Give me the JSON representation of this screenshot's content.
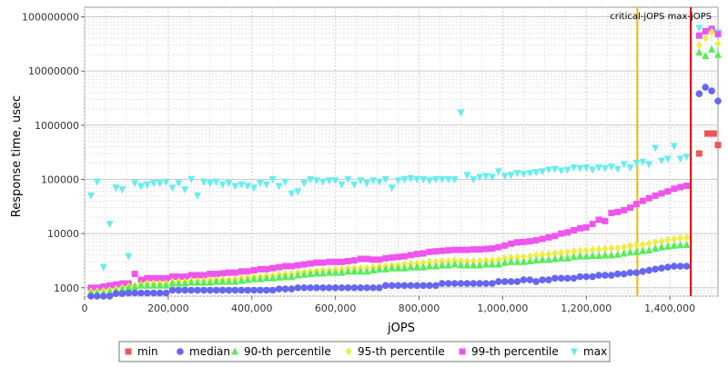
{
  "chart_data": {
    "type": "scatter",
    "xlabel": "jOPS",
    "ylabel": "Response time, usec",
    "y_scale": "log",
    "xlim": [
      0,
      1515000
    ],
    "ylim": [
      700,
      150000000
    ],
    "x_ticks": [
      0,
      200000,
      400000,
      600000,
      800000,
      1000000,
      1200000,
      1400000
    ],
    "x_tick_labels": [
      "0",
      "200,000",
      "400,000",
      "600,000",
      "800,000",
      "1,000,000",
      "1,200,000",
      "1,400,000"
    ],
    "y_ticks": [
      1000,
      10000,
      100000,
      1000000,
      10000000,
      100000000
    ],
    "y_tick_labels": [
      "1000",
      "10000",
      "100000",
      "1000000",
      "10000000",
      "100000000"
    ],
    "grid": true,
    "legend_position": "bottom",
    "reference_lines": [
      {
        "label": "critical-jOPS",
        "x": 1322000,
        "color": "#f5b800"
      },
      {
        "label": "max-jOPS",
        "x": 1450000,
        "color": "#e00000"
      }
    ],
    "reference_label_text": "critical-jOPS max-jOPS",
    "series": [
      {
        "name": "min",
        "color": "#ee5555",
        "marker": "square",
        "x": [
          1470000,
          1490000,
          1505000,
          1515000
        ],
        "y": [
          300000,
          700000,
          700000,
          430000
        ]
      },
      {
        "name": "median",
        "color": "#6666ee",
        "marker": "circle",
        "x": [
          15000,
          30000,
          45000,
          60000,
          75000,
          90000,
          105000,
          120000,
          135000,
          150000,
          165000,
          180000,
          195000,
          210000,
          225000,
          240000,
          255000,
          270000,
          285000,
          300000,
          315000,
          330000,
          345000,
          360000,
          375000,
          390000,
          405000,
          420000,
          435000,
          450000,
          465000,
          480000,
          495000,
          510000,
          525000,
          540000,
          555000,
          570000,
          585000,
          600000,
          615000,
          630000,
          645000,
          660000,
          675000,
          690000,
          705000,
          720000,
          735000,
          750000,
          765000,
          780000,
          795000,
          810000,
          825000,
          840000,
          855000,
          870000,
          885000,
          900000,
          915000,
          930000,
          945000,
          960000,
          975000,
          990000,
          1005000,
          1020000,
          1035000,
          1050000,
          1065000,
          1080000,
          1095000,
          1110000,
          1125000,
          1140000,
          1155000,
          1170000,
          1185000,
          1200000,
          1215000,
          1230000,
          1245000,
          1260000,
          1275000,
          1290000,
          1305000,
          1320000,
          1335000,
          1350000,
          1365000,
          1380000,
          1395000,
          1410000,
          1425000,
          1440000,
          1470000,
          1485000,
          1500000,
          1515000
        ],
        "y": [
          700,
          700,
          700,
          700,
          780,
          780,
          800,
          800,
          800,
          800,
          800,
          800,
          800,
          900,
          900,
          900,
          900,
          900,
          900,
          900,
          900,
          900,
          900,
          900,
          900,
          900,
          900,
          900,
          900,
          900,
          950,
          950,
          950,
          1000,
          1000,
          1000,
          1000,
          1000,
          1000,
          1000,
          1000,
          1000,
          1000,
          1000,
          1000,
          1000,
          1000,
          1100,
          1100,
          1100,
          1100,
          1100,
          1100,
          1100,
          1100,
          1100,
          1200,
          1200,
          1200,
          1200,
          1200,
          1200,
          1200,
          1200,
          1200,
          1300,
          1300,
          1300,
          1300,
          1400,
          1400,
          1300,
          1400,
          1400,
          1500,
          1500,
          1500,
          1500,
          1600,
          1600,
          1600,
          1700,
          1700,
          1700,
          1800,
          1800,
          1900,
          1900,
          2000,
          2100,
          2200,
          2300,
          2400,
          2500,
          2500,
          2500,
          3800000,
          5000000,
          4300000,
          2800000
        ]
      },
      {
        "name": "90-th percentile",
        "color": "#55ee55",
        "marker": "triangle-up",
        "x": [
          15000,
          30000,
          45000,
          60000,
          75000,
          90000,
          105000,
          120000,
          135000,
          150000,
          165000,
          180000,
          195000,
          210000,
          225000,
          240000,
          255000,
          270000,
          285000,
          300000,
          315000,
          330000,
          345000,
          360000,
          375000,
          390000,
          405000,
          420000,
          435000,
          450000,
          465000,
          480000,
          495000,
          510000,
          525000,
          540000,
          555000,
          570000,
          585000,
          600000,
          615000,
          630000,
          645000,
          660000,
          675000,
          690000,
          705000,
          720000,
          735000,
          750000,
          765000,
          780000,
          795000,
          810000,
          825000,
          840000,
          855000,
          870000,
          885000,
          900000,
          915000,
          930000,
          945000,
          960000,
          975000,
          990000,
          1005000,
          1020000,
          1035000,
          1050000,
          1065000,
          1080000,
          1095000,
          1110000,
          1125000,
          1140000,
          1155000,
          1170000,
          1185000,
          1200000,
          1215000,
          1230000,
          1245000,
          1260000,
          1275000,
          1290000,
          1305000,
          1320000,
          1335000,
          1350000,
          1365000,
          1380000,
          1395000,
          1410000,
          1425000,
          1440000,
          1470000,
          1485000,
          1500000,
          1515000
        ],
        "y": [
          800,
          800,
          800,
          850,
          900,
          950,
          1000,
          1050,
          1100,
          1100,
          1100,
          1100,
          1100,
          1200,
          1200,
          1200,
          1250,
          1250,
          1250,
          1250,
          1300,
          1300,
          1300,
          1300,
          1350,
          1400,
          1450,
          1450,
          1500,
          1500,
          1550,
          1600,
          1600,
          1700,
          1750,
          1800,
          1850,
          1850,
          1900,
          1900,
          1900,
          2000,
          2000,
          2000,
          2000,
          2100,
          2200,
          2200,
          2300,
          2300,
          2300,
          2400,
          2400,
          2400,
          2500,
          2500,
          2600,
          2600,
          2700,
          2600,
          2600,
          2600,
          2600,
          2700,
          2700,
          2700,
          2900,
          3000,
          3000,
          3000,
          3100,
          3200,
          3300,
          3300,
          3400,
          3500,
          3500,
          3700,
          3800,
          3800,
          3900,
          3900,
          4000,
          4000,
          4100,
          4300,
          4500,
          4600,
          4800,
          4900,
          5300,
          5600,
          5800,
          6000,
          6100,
          6200,
          22000000,
          19000000,
          25000000,
          20000000
        ]
      },
      {
        "name": "95-th percentile",
        "color": "#eeee44",
        "marker": "diamond",
        "x": [
          15000,
          30000,
          45000,
          60000,
          75000,
          90000,
          105000,
          120000,
          135000,
          150000,
          165000,
          180000,
          195000,
          210000,
          225000,
          240000,
          255000,
          270000,
          285000,
          300000,
          315000,
          330000,
          345000,
          360000,
          375000,
          390000,
          405000,
          420000,
          435000,
          450000,
          465000,
          480000,
          495000,
          510000,
          525000,
          540000,
          555000,
          570000,
          585000,
          600000,
          615000,
          630000,
          645000,
          660000,
          675000,
          690000,
          705000,
          720000,
          735000,
          750000,
          765000,
          780000,
          795000,
          810000,
          825000,
          840000,
          855000,
          870000,
          885000,
          900000,
          915000,
          930000,
          945000,
          960000,
          975000,
          990000,
          1005000,
          1020000,
          1035000,
          1050000,
          1065000,
          1080000,
          1095000,
          1110000,
          1125000,
          1140000,
          1155000,
          1170000,
          1185000,
          1200000,
          1215000,
          1230000,
          1245000,
          1260000,
          1275000,
          1290000,
          1305000,
          1320000,
          1335000,
          1350000,
          1365000,
          1380000,
          1395000,
          1410000,
          1425000,
          1440000,
          1470000,
          1485000,
          1500000,
          1515000
        ],
        "y": [
          850,
          850,
          870,
          900,
          950,
          1000,
          1050,
          1100,
          1150,
          1200,
          1200,
          1200,
          1200,
          1300,
          1300,
          1300,
          1350,
          1350,
          1350,
          1400,
          1400,
          1400,
          1400,
          1450,
          1500,
          1550,
          1600,
          1600,
          1650,
          1700,
          1750,
          1800,
          1800,
          1900,
          1950,
          2000,
          2050,
          2100,
          2100,
          2200,
          2200,
          2300,
          2300,
          2300,
          2300,
          2400,
          2500,
          2500,
          2600,
          2600,
          2700,
          2800,
          2800,
          2900,
          3000,
          3000,
          3100,
          3100,
          3200,
          3100,
          3100,
          3100,
          3100,
          3200,
          3200,
          3300,
          3500,
          3600,
          3700,
          3700,
          3800,
          4000,
          4100,
          4200,
          4300,
          4400,
          4500,
          4700,
          4800,
          4900,
          5000,
          5100,
          5200,
          5300,
          5400,
          5600,
          5900,
          6100,
          6300,
          6500,
          6900,
          7200,
          7600,
          7900,
          8200,
          8500,
          30000000,
          40000000,
          52000000,
          32000000
        ]
      },
      {
        "name": "99-th percentile",
        "color": "#ee55ee",
        "marker": "square",
        "x": [
          15000,
          30000,
          45000,
          60000,
          75000,
          90000,
          105000,
          120000,
          135000,
          150000,
          165000,
          180000,
          195000,
          210000,
          225000,
          240000,
          255000,
          270000,
          285000,
          300000,
          315000,
          330000,
          345000,
          360000,
          375000,
          390000,
          405000,
          420000,
          435000,
          450000,
          465000,
          480000,
          495000,
          510000,
          525000,
          540000,
          555000,
          570000,
          585000,
          600000,
          615000,
          630000,
          645000,
          660000,
          675000,
          690000,
          705000,
          720000,
          735000,
          750000,
          765000,
          780000,
          795000,
          810000,
          825000,
          840000,
          855000,
          870000,
          885000,
          900000,
          915000,
          930000,
          945000,
          960000,
          975000,
          990000,
          1005000,
          1020000,
          1035000,
          1050000,
          1065000,
          1080000,
          1095000,
          1110000,
          1125000,
          1140000,
          1155000,
          1170000,
          1185000,
          1200000,
          1215000,
          1230000,
          1245000,
          1260000,
          1275000,
          1290000,
          1305000,
          1320000,
          1335000,
          1350000,
          1365000,
          1380000,
          1395000,
          1410000,
          1425000,
          1440000,
          1470000,
          1485000,
          1500000,
          1515000
        ],
        "y": [
          1000,
          1000,
          1050,
          1100,
          1150,
          1200,
          1200,
          1800,
          1400,
          1500,
          1500,
          1500,
          1500,
          1600,
          1600,
          1600,
          1700,
          1700,
          1700,
          1800,
          1800,
          1850,
          1900,
          1900,
          2000,
          2000,
          2100,
          2200,
          2200,
          2300,
          2400,
          2500,
          2500,
          2600,
          2700,
          2800,
          2900,
          2900,
          3000,
          3000,
          3000,
          3100,
          3200,
          3400,
          3400,
          3300,
          3300,
          3500,
          3600,
          3700,
          3800,
          4000,
          4200,
          4300,
          4600,
          4700,
          4800,
          4900,
          5000,
          5000,
          5000,
          5100,
          5100,
          5200,
          5300,
          5600,
          6000,
          6500,
          6900,
          7000,
          7200,
          7500,
          8000,
          8500,
          9000,
          10000,
          10500,
          11500,
          12500,
          13000,
          15000,
          18000,
          17000,
          24000,
          25000,
          27000,
          30000,
          35000,
          40000,
          45000,
          50000,
          55000,
          60000,
          67000,
          72000,
          76000,
          45000000,
          54000000,
          60000000,
          48000000
        ]
      },
      {
        "name": "max",
        "color": "#66eeee",
        "marker": "triangle-down",
        "x": [
          15000,
          30000,
          45000,
          60000,
          75000,
          90000,
          105000,
          120000,
          135000,
          150000,
          165000,
          180000,
          195000,
          210000,
          225000,
          240000,
          255000,
          270000,
          285000,
          300000,
          315000,
          330000,
          345000,
          360000,
          375000,
          390000,
          405000,
          420000,
          435000,
          450000,
          465000,
          480000,
          495000,
          510000,
          525000,
          540000,
          555000,
          570000,
          585000,
          600000,
          615000,
          630000,
          645000,
          660000,
          675000,
          690000,
          705000,
          720000,
          735000,
          750000,
          765000,
          780000,
          795000,
          810000,
          825000,
          840000,
          855000,
          870000,
          885000,
          900000,
          915000,
          930000,
          945000,
          960000,
          975000,
          990000,
          1005000,
          1020000,
          1035000,
          1050000,
          1065000,
          1080000,
          1095000,
          1110000,
          1125000,
          1140000,
          1155000,
          1170000,
          1185000,
          1200000,
          1215000,
          1230000,
          1245000,
          1260000,
          1275000,
          1290000,
          1305000,
          1320000,
          1335000,
          1350000,
          1365000,
          1380000,
          1395000,
          1410000,
          1425000,
          1440000,
          1470000,
          1485000,
          1500000,
          1515000
        ],
        "y": [
          50000,
          90000,
          2400,
          15000,
          70000,
          65000,
          3800,
          85000,
          75000,
          80000,
          85000,
          85000,
          90000,
          70000,
          85000,
          65000,
          100000,
          50000,
          90000,
          85000,
          90000,
          80000,
          85000,
          75000,
          80000,
          75000,
          70000,
          85000,
          80000,
          100000,
          75000,
          90000,
          55000,
          60000,
          85000,
          100000,
          95000,
          90000,
          95000,
          95000,
          80000,
          100000,
          80000,
          95000,
          85000,
          95000,
          90000,
          100000,
          70000,
          95000,
          100000,
          105000,
          100000,
          100000,
          95000,
          100000,
          100000,
          100000,
          100000,
          1700000,
          120000,
          100000,
          110000,
          115000,
          110000,
          140000,
          115000,
          120000,
          130000,
          125000,
          130000,
          135000,
          140000,
          150000,
          155000,
          145000,
          150000,
          165000,
          160000,
          165000,
          150000,
          165000,
          160000,
          170000,
          155000,
          190000,
          165000,
          200000,
          210000,
          190000,
          380000,
          220000,
          240000,
          410000,
          240000,
          260000,
          62000000,
          55000000,
          55000000,
          52000000
        ]
      }
    ]
  }
}
